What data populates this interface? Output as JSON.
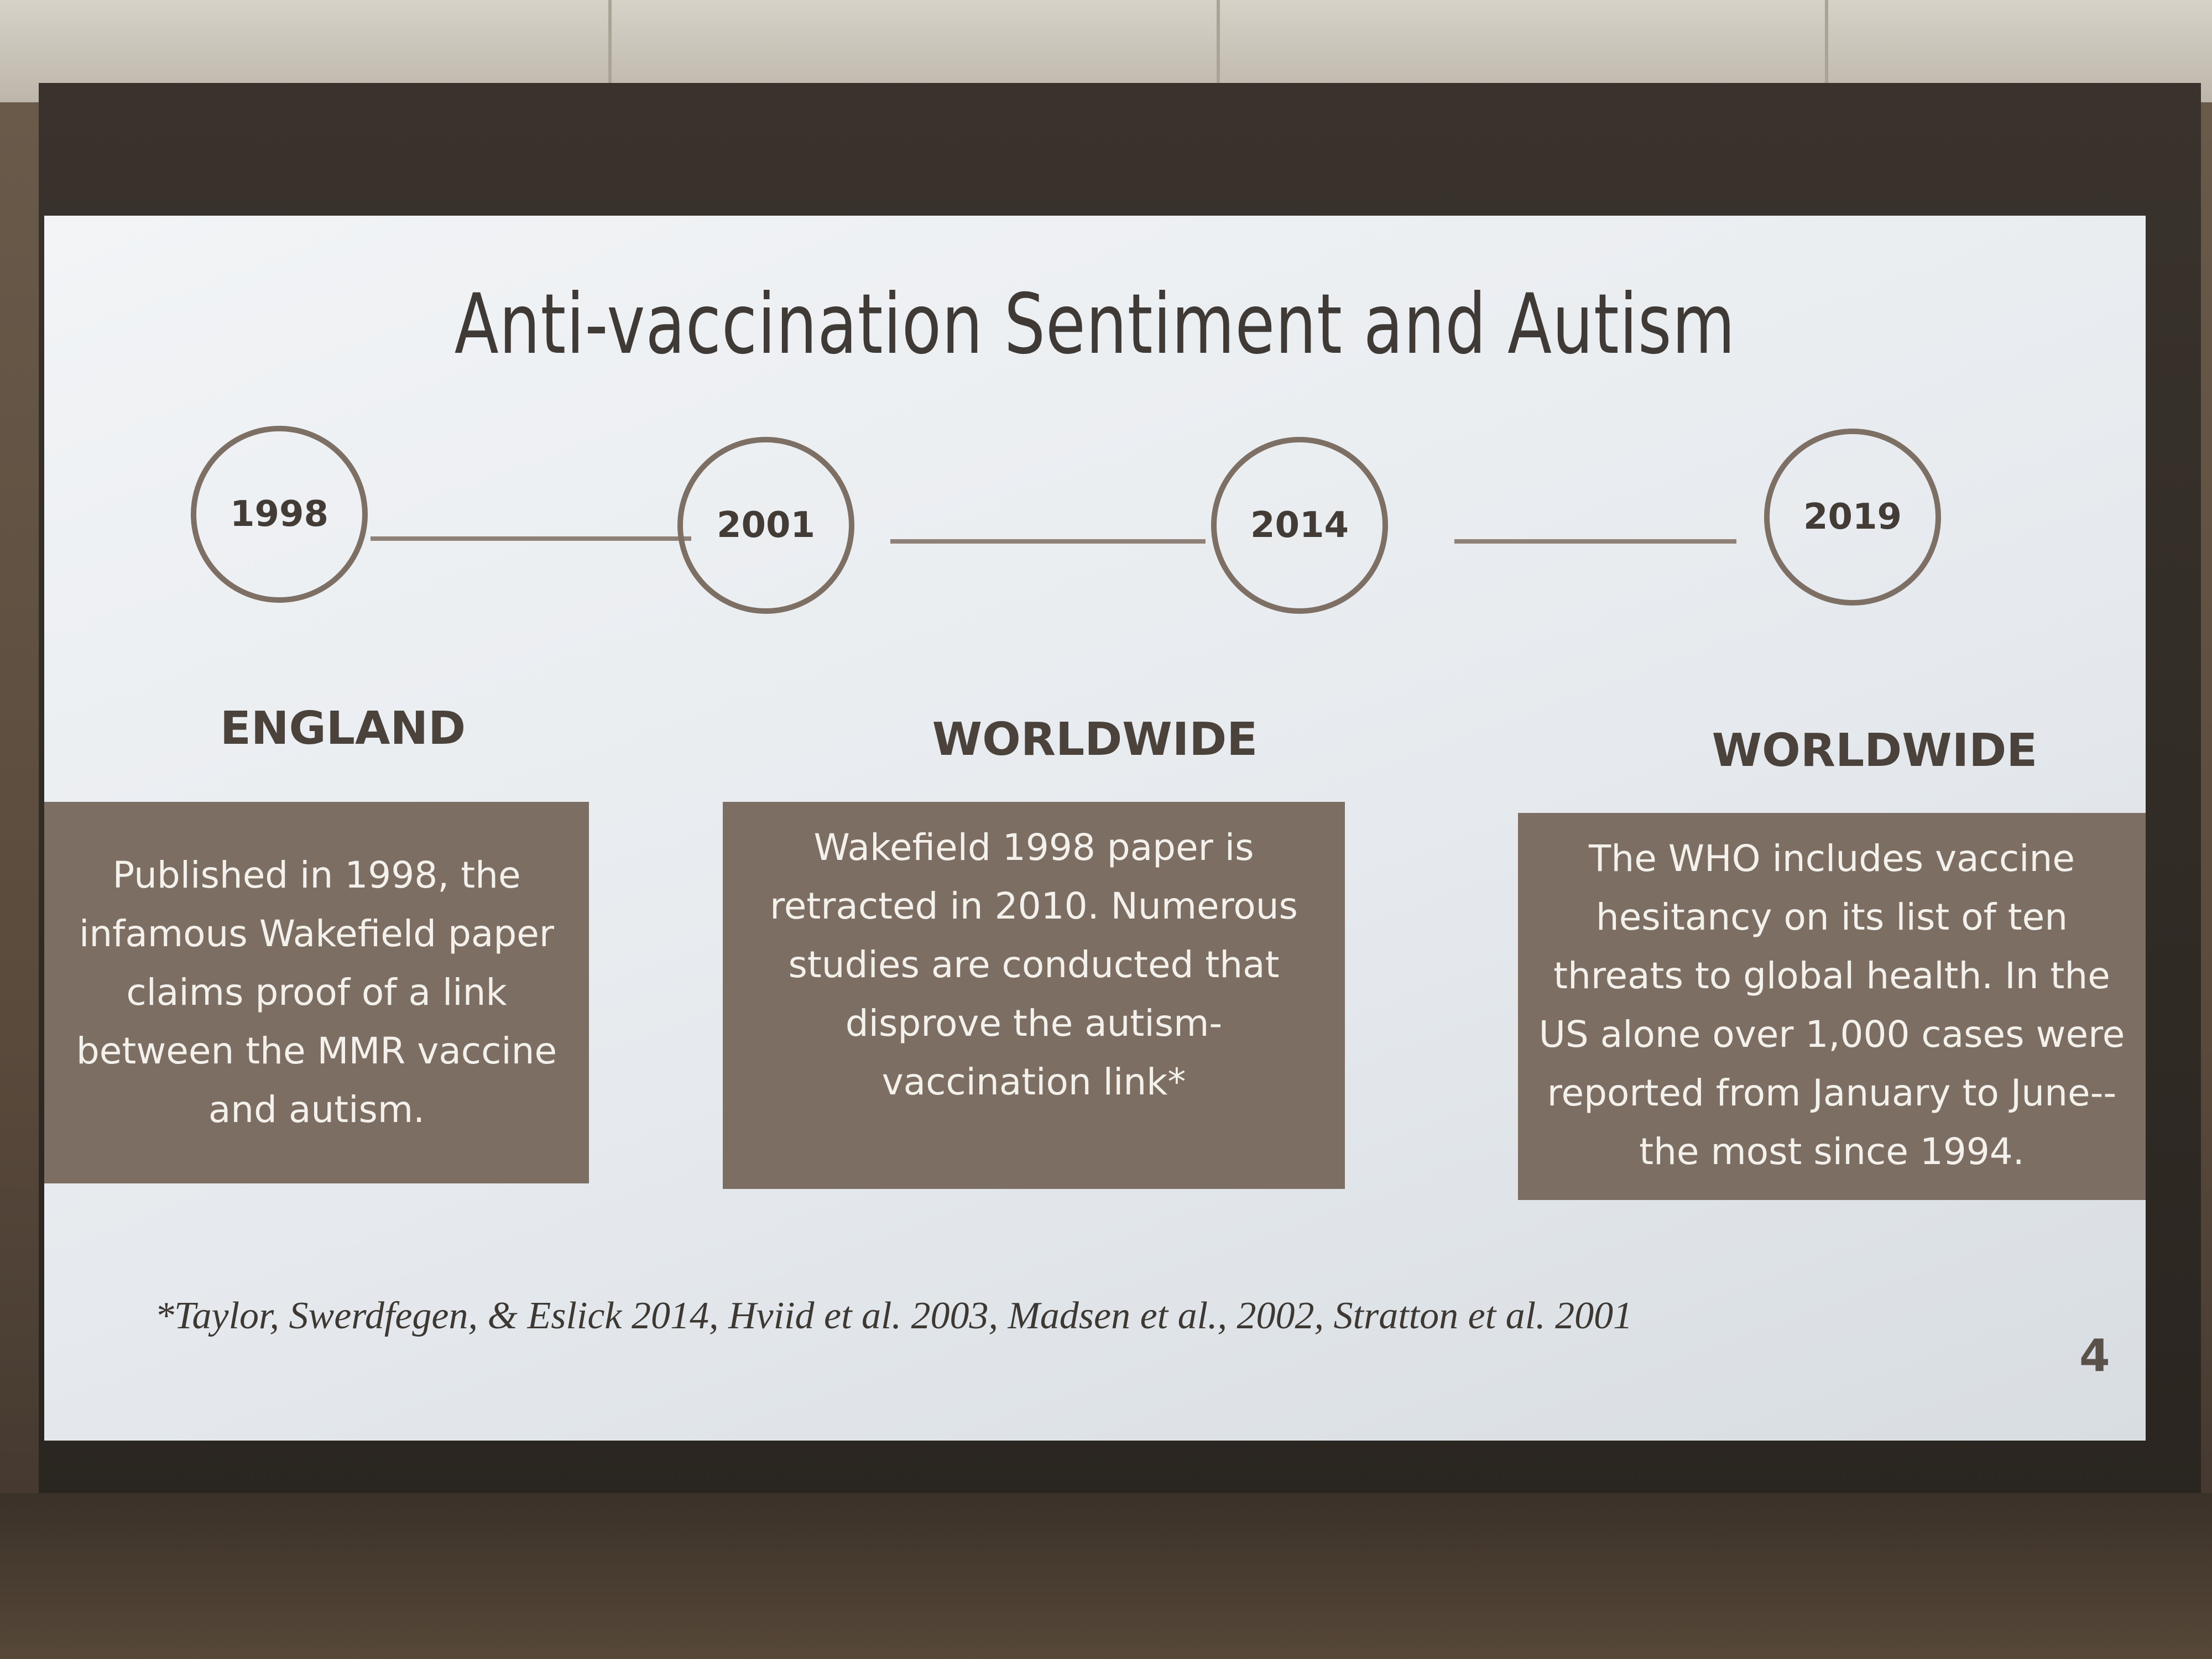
{
  "slide": {
    "title": "Anti-vaccination Sentiment and Autism",
    "timeline": [
      {
        "year": "1998"
      },
      {
        "year": "2001"
      },
      {
        "year": "2014"
      },
      {
        "year": "2019"
      }
    ],
    "panels": [
      {
        "region": "ENGLAND",
        "text": "Published in 1998, the infamous Wakefield paper claims proof of a link between the MMR vaccine and autism."
      },
      {
        "region": "WORLDWIDE",
        "text": "Wakefield 1998 paper is retracted in 2010. Numerous studies are conducted that disprove the autism-vaccination link*"
      },
      {
        "region": "WORLDWIDE",
        "text": "The WHO includes vaccine hesitancy on its list of ten threats to global health. In the US alone over 1,000 cases were reported from January to June--the most since 1994."
      }
    ],
    "footnote": "*Taylor, Swerdfegen, & Eslick 2014, Hviid et al. 2003, Madsen et al., 2002, Stratton et al. 2001",
    "page_number": "4"
  }
}
